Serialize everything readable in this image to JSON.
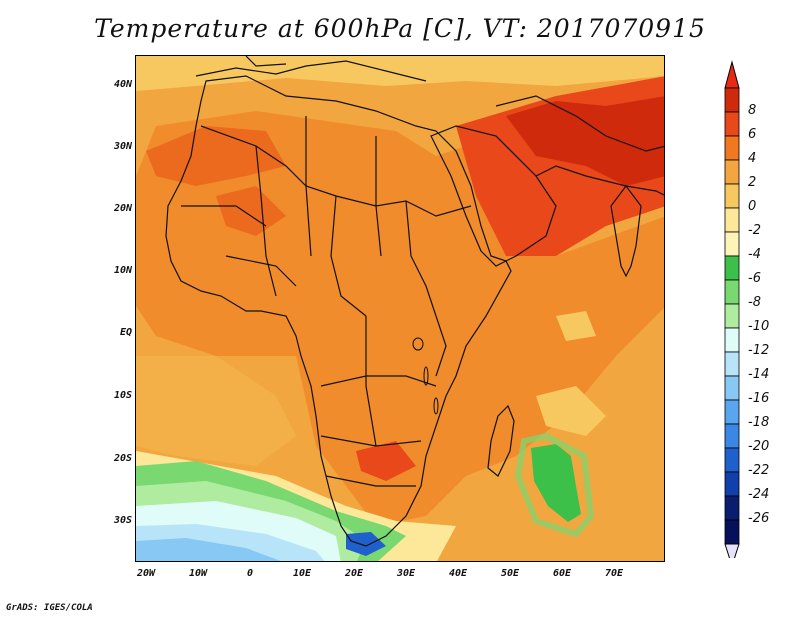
{
  "title": "Temperature at 600hPa [C], VT: 2017070915",
  "credit": "GrADS: IGES/COLA",
  "map": {
    "region": "Africa and Middle East",
    "variable": "Temperature at 600hPa",
    "unit": "C",
    "lon_range": [
      -22,
      80
    ],
    "lat_range": [
      -36,
      45
    ],
    "lat_labels": [
      "40N",
      "30N",
      "20N",
      "10N",
      "EQ",
      "10S",
      "20S",
      "30S"
    ],
    "lon_labels": [
      "20W",
      "10W",
      "0",
      "10E",
      "20E",
      "30E",
      "40E",
      "50E",
      "60E",
      "70E"
    ]
  },
  "colorbar": {
    "labels": [
      "8",
      "6",
      "4",
      "2",
      "0",
      "-2",
      "-4",
      "-6",
      "-8",
      "-10",
      "-12",
      "-14",
      "-16",
      "-18",
      "-20",
      "-22",
      "-24",
      "-26"
    ],
    "colors": [
      "#d02a0c",
      "#e8481a",
      "#f07820",
      "#f2a640",
      "#f8c860",
      "#fde89a",
      "#fff4b8",
      "#3cc04a",
      "#7ad870",
      "#b0eca0",
      "#e0fcf8",
      "#b8e4fa",
      "#88c8f4",
      "#5aa6ee",
      "#3a88e4",
      "#2060cc",
      "#1040aa",
      "#0a1e70",
      "#07105a"
    ],
    "top_color": "#e82a14",
    "bottom_color": "#e6e2fa"
  }
}
